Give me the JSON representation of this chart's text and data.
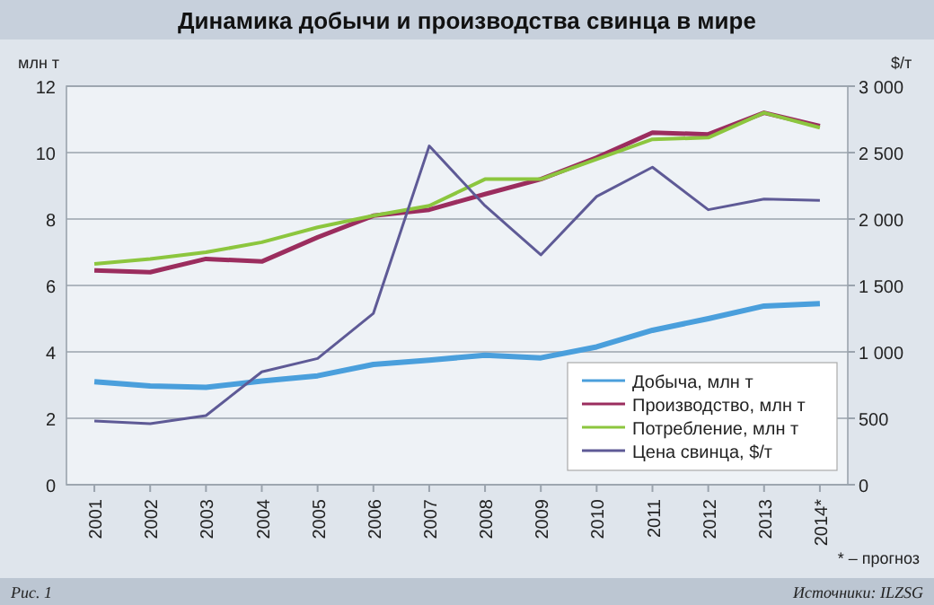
{
  "chart_data": {
    "type": "line",
    "title": "Динамика добычи и производства свинца в мире",
    "ylabel": "млн т",
    "y2label": "$/т",
    "categories": [
      "2001",
      "2002",
      "2003",
      "2004",
      "2005",
      "2006",
      "2007",
      "2008",
      "2009",
      "2010",
      "2011",
      "2012",
      "2013",
      "2014*"
    ],
    "series": [
      {
        "name": "Добыча, млн т",
        "color": "#4a9fdc",
        "values": [
          3.1,
          2.97,
          2.93,
          3.12,
          3.28,
          3.62,
          3.75,
          3.9,
          3.82,
          4.15,
          4.65,
          5.0,
          5.38,
          5.45
        ]
      },
      {
        "name": "Производство, млн т",
        "color": "#9b2d5e",
        "values": [
          6.45,
          6.4,
          6.8,
          6.72,
          7.45,
          8.1,
          8.28,
          8.75,
          9.2,
          9.85,
          10.6,
          10.55,
          11.2,
          10.8
        ]
      },
      {
        "name": "Потребление, млн т",
        "color": "#8cc63e",
        "values": [
          6.65,
          6.8,
          7.0,
          7.3,
          7.75,
          8.1,
          8.4,
          9.2,
          9.2,
          9.8,
          10.4,
          10.45,
          11.2,
          10.75
        ]
      },
      {
        "name": "Цена свинца, $/т",
        "color": "#5e5a96",
        "axis": "y2",
        "values": [
          480,
          460,
          520,
          850,
          950,
          1290,
          2550,
          2100,
          1730,
          2170,
          2390,
          2070,
          2150,
          2140
        ]
      }
    ],
    "ylim": [
      0,
      12
    ],
    "yticks": [
      0,
      2,
      4,
      6,
      8,
      10,
      12
    ],
    "y2lim": [
      0,
      3000
    ],
    "y2ticks": [
      0,
      500,
      {
        "value": 1000,
        "label": "1 000"
      },
      {
        "value": 1500,
        "label": "1 500"
      },
      {
        "value": 2000,
        "label": "2 000"
      },
      {
        "value": 2500,
        "label": "2 500"
      },
      {
        "value": 3000,
        "label": "3 000"
      }
    ],
    "grid": "y",
    "legend": "bottom right",
    "annotations": [
      "* – прогноз",
      "Рис. 1",
      "Источники: ILZSG"
    ]
  }
}
